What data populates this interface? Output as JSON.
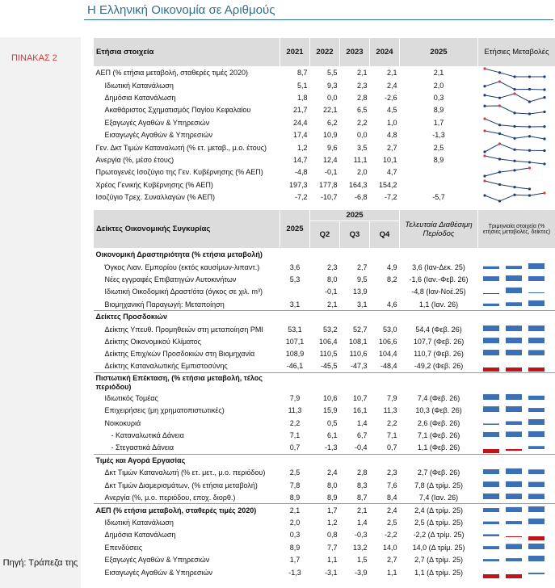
{
  "page_title": "Η Ελληνική Οικονομία σε Αριθμούς",
  "table_label": "ΠΙΝΑΚΑΣ 2",
  "source": "Πηγή: Τράπεζα της",
  "t1": {
    "header": {
      "label": "Ετήσια στοιχεία",
      "years": [
        "2021",
        "2022",
        "2023",
        "2024"
      ],
      "col2025": "2025",
      "spark": "Ετήσιες Μεταβολές"
    },
    "rows": [
      {
        "label": "ΑΕΠ (% ετήσια μεταβολή, σταθερές τιμές 2020)",
        "indent": 0,
        "v": [
          "8,7",
          "5,5",
          "2,1",
          "2,1"
        ],
        "y25": "2,1",
        "s": [
          8.7,
          5.5,
          2.1,
          2.1,
          2.1
        ]
      },
      {
        "label": "Ιδιωτική Κατανάλωση",
        "indent": 1,
        "v": [
          "5,1",
          "9,3",
          "2,3",
          "2,4"
        ],
        "y25": "2,0",
        "s": [
          5.1,
          9.3,
          2.3,
          2.4,
          2.0
        ]
      },
      {
        "label": "Δημόσια Κατανάλωση",
        "indent": 1,
        "v": [
          "1,8",
          "0,0",
          "2,8",
          "-2,6"
        ],
        "y25": "0,3",
        "s": [
          1.8,
          0.0,
          2.8,
          -2.6,
          0.3
        ]
      },
      {
        "label": "Ακαθάριστος Σχηματισμός Παγίου Κεφαλαίου",
        "indent": 1,
        "v": [
          "21,7",
          "22,1",
          "6,5",
          "4,5"
        ],
        "y25": "8,9",
        "s": [
          21.7,
          22.1,
          6.5,
          4.5,
          8.9
        ]
      },
      {
        "label": "Εξαγωγές Αγαθών & Υπηρεσιών",
        "indent": 1,
        "v": [
          "24,4",
          "6,2",
          "2,2",
          "1,0"
        ],
        "y25": "1,7",
        "s": [
          24.4,
          6.2,
          2.2,
          1.0,
          1.7
        ]
      },
      {
        "label": "Εισαγωγές Αγαθών & Υπηρεσιών",
        "indent": 1,
        "v": [
          "17,4",
          "10,9",
          "0,0",
          "4,8"
        ],
        "y25": "-1,3",
        "s": [
          17.4,
          10.9,
          0.0,
          4.8,
          -1.3
        ]
      },
      {
        "label": "Γεν. Δκτ Τιμών Καταναλωτή (% ετ. μεταβ., μ.ο. έτους)",
        "indent": 0,
        "v": [
          "1,2",
          "9,6",
          "3,5",
          "2,7"
        ],
        "y25": "2,5",
        "s": [
          1.2,
          9.6,
          3.5,
          2.7,
          2.5
        ]
      },
      {
        "label": "Ανεργία (%, μέσο έτους)",
        "indent": 0,
        "v": [
          "14,7",
          "12,4",
          "11,1",
          "10,1"
        ],
        "y25": "8,9",
        "s": [
          14.7,
          12.4,
          11.1,
          10.1,
          8.9
        ]
      },
      {
        "label": "Πρωτογενές Ισοζύγιο της Γεν. Κυβέρνησης (% ΑΕΠ)",
        "indent": 0,
        "v": [
          "-4,8",
          "-0,1",
          "2,0",
          "4,7"
        ],
        "y25": "",
        "s": [
          -4.8,
          -0.1,
          2.0,
          4.7
        ]
      },
      {
        "label": "Χρέος Γενικής Κυβέρνησης (% ΑΕΠ)",
        "indent": 0,
        "v": [
          "197,3",
          "177,8",
          "164,3",
          "154,2"
        ],
        "y25": "",
        "s": [
          197.3,
          177.8,
          164.3,
          154.2
        ]
      },
      {
        "label": "Ισοζύγιο Τρεχ. Συναλλαγών (% ΑΕΠ)",
        "indent": 0,
        "v": [
          "-7,2",
          "-10,7",
          "-6,8",
          "-7,2"
        ],
        "y25": "-5,7",
        "s": [
          -7.2,
          -10.7,
          -6.8,
          -7.2,
          -5.7
        ]
      }
    ]
  },
  "t2": {
    "header": {
      "label": "Δείκτες Οικονομικής Συγκυρίας",
      "year": "2025",
      "super": "2025",
      "q": [
        "Q2",
        "Q3",
        "Q4"
      ],
      "latest": "Τελευταία Διαθέσιμη Περίοδος",
      "bars": "Τριμηνιαία στοιχεία (% ετήσιες μεταβολές, δείκτες)"
    },
    "rows": [
      {
        "type": "sec",
        "label": "Οικονομική Δραστηριότητα (% ετήσια μεταβολή)"
      },
      {
        "label": "Όγκος Λιαν. Εμπορίου (εκτός καυσίμων-λιπαντ.)",
        "indent": 1,
        "y": "3,6",
        "q": [
          "2,3",
          "2,7",
          "4,9"
        ],
        "last": "3,6 (Ιαν-Δεκ. 25)",
        "b": [
          2.3,
          2.7,
          4.9
        ]
      },
      {
        "label": "Νέες εγγραφές Επιβατηγών Αυτοκινήτων",
        "indent": 1,
        "y": "5,3",
        "q": [
          "8,0",
          "9,5",
          "8,2"
        ],
        "last": "-1,6 (Ιαν.-Φεβ. 26)",
        "b": [
          8.0,
          9.5,
          8.2
        ]
      },
      {
        "label": "Ιδιωτική Οικοδομική Δραστ/ότα (όγκος σε χιλ. m³)",
        "indent": 1,
        "y": "",
        "q": [
          "-0,1",
          "13,9",
          ""
        ],
        "last": "-4,8 (Ιαν-Νοέ.25)",
        "b": [
          -0.1,
          13.9,
          0
        ]
      },
      {
        "label": "Βιομηχανική Παραγωγή: Μεταποίηση",
        "indent": 1,
        "y": "3,1",
        "q": [
          "2,1",
          "3,1",
          "4,6"
        ],
        "last": "1,1 (Ιαν. 26)",
        "b": [
          2.1,
          3.1,
          4.6
        ]
      },
      {
        "type": "sec",
        "label": "Δείκτες Προσδοκιών"
      },
      {
        "label": "Δείκτης Υπευθ. Προμηθειών στη μεταποίηση PMI",
        "indent": 1,
        "y": "53,1",
        "q": [
          "53,2",
          "52,7",
          "53,0"
        ],
        "last": "54,4 (Φεβ. 26)",
        "b": [
          53.2,
          52.7,
          53.0
        ]
      },
      {
        "label": "Δείκτης Οικονομικού Κλίματος",
        "indent": 1,
        "y": "107,1",
        "q": [
          "106,4",
          "108,1",
          "106,6"
        ],
        "last": "107,7 (Φεβ. 26)",
        "b": [
          106.4,
          108.1,
          106.6
        ]
      },
      {
        "label": "Δείκτης Επιχ/κών Προσδοκιών στη Βιομηχανία",
        "indent": 1,
        "y": "108,9",
        "q": [
          "110,5",
          "110,6",
          "104,4"
        ],
        "last": "110,7 (Φεβ. 26)",
        "b": [
          110.5,
          110.6,
          104.4
        ]
      },
      {
        "label": "Δείκτης Καταναλωτικής Εμπιστοσύνης",
        "indent": 1,
        "y": "-46,1",
        "q": [
          "-45,5",
          "-47,3",
          "-48,4"
        ],
        "last": "-49,2 (Φεβ. 26)",
        "b": [
          -45.5,
          -47.3,
          -48.4
        ]
      },
      {
        "type": "sec2",
        "label": "Πιστωτική Επέκταση, (% ετήσια μεταβολή, τέλος περιόδου)"
      },
      {
        "label": "Ιδιωτικός Τομέας",
        "indent": 1,
        "y": "7,9",
        "q": [
          "10,6",
          "10,7",
          "7,9"
        ],
        "last": "7,4 (Φεβ. 26)",
        "b": [
          10.6,
          10.7,
          7.9
        ]
      },
      {
        "label": "Επιχειρήσεις (μη χρηματοπιστωτικές)",
        "indent": 1,
        "y": "11,3",
        "q": [
          "15,9",
          "16,1",
          "11,3"
        ],
        "last": "10,3 (Φεβ. 26)",
        "b": [
          15.9,
          16.1,
          11.3
        ]
      },
      {
        "label": "Νοικοκυριά",
        "indent": 1,
        "y": "2,2",
        "q": [
          "0,5",
          "1,4",
          "2,2"
        ],
        "last": "2,6 (Φεβ. 26)",
        "b": [
          0.5,
          1.4,
          2.2
        ]
      },
      {
        "label": "- Καταναλωτικά Δάνεια",
        "indent": 2,
        "y": "7,1",
        "q": [
          "6,1",
          "6,7",
          "7,1"
        ],
        "last": "7,1 (Φεβ. 26)",
        "b": [
          6.1,
          6.7,
          7.1
        ]
      },
      {
        "label": "- Στεγαστικά Δάνεια",
        "indent": 2,
        "y": "0,7",
        "q": [
          "-1,3",
          "-0,4",
          "0,7"
        ],
        "last": "1,1 (Φεβ. 26)",
        "b": [
          -1.3,
          -0.4,
          0.7
        ]
      },
      {
        "type": "sec",
        "label": "Τιμές και Αγορά Εργασίας"
      },
      {
        "label": "Δκτ Τιμών Καταναλωτή (% ετ. μετ., μ.ο. περιόδου)",
        "indent": 1,
        "y": "2,5",
        "q": [
          "2,4",
          "2,8",
          "2,3"
        ],
        "last": "2,7 (Φεβ. 26)",
        "b": [
          2.4,
          2.8,
          2.3
        ]
      },
      {
        "label": "Δκτ Τιμών Διαμερισμάτων, (% ετήσια μεταβολή)",
        "indent": 1,
        "y": "7,8",
        "q": [
          "8,0",
          "8,3",
          "7,6"
        ],
        "last": "7,8 (Δ τρίμ. 25)",
        "b": [
          8.0,
          8.3,
          7.6
        ]
      },
      {
        "label": "Ανεργία (%, μ.ο. περιόδου, εποχ. διορθ.)",
        "indent": 1,
        "y": "8,9",
        "q": [
          "8,9",
          "8,7",
          "8,4"
        ],
        "last": "7,4 (Ιαν. 26)",
        "b": [
          8.9,
          8.7,
          8.4
        ]
      },
      {
        "type": "sec",
        "label": "ΑΕΠ (% ετήσια μεταβολή, σταθερές τιμές 2020)",
        "y": "2,1",
        "q": [
          "1,7",
          "2,1",
          "2,4"
        ],
        "last": "2,4 (Δ τρίμ. 25)",
        "b": [
          1.7,
          2.1,
          2.4
        ]
      },
      {
        "label": "Ιδιωτική Κατανάλωση",
        "indent": 1,
        "y": "2,0",
        "q": [
          "1,2",
          "1,4",
          "2,5"
        ],
        "last": "2,5 (Δ τρίμ. 25)",
        "b": [
          1.2,
          1.4,
          2.5
        ]
      },
      {
        "label": "Δημόσια Κατανάλωση",
        "indent": 1,
        "y": "0,3",
        "q": [
          "0,8",
          "-0,3",
          "-2,2"
        ],
        "last": "-2,2 (Δ τρίμ. 25)",
        "b": [
          0.8,
          -0.3,
          -2.2
        ]
      },
      {
        "label": "Επενδύσεις",
        "indent": 1,
        "y": "8,9",
        "q": [
          "7,7",
          "13,2",
          "14,0"
        ],
        "last": "14,0 (Δ τρίμ. 25)",
        "b": [
          7.7,
          13.2,
          14.0
        ]
      },
      {
        "label": "Εξαγωγές Αγαθών & Υπηρεσιών",
        "indent": 1,
        "y": "1,7",
        "q": [
          "1,1",
          "1,5",
          "2,7"
        ],
        "last": "2,7 (Δ τρίμ. 25)",
        "b": [
          1.1,
          1.5,
          2.7
        ]
      },
      {
        "label": "Εισαγωγές Αγαθών & Υπηρεσιών",
        "indent": 1,
        "y": "-1,3",
        "q": [
          "-3,1",
          "-3,9",
          "1,1"
        ],
        "last": "1,1 (Δ τρίμ. 25)",
        "b": [
          -3.1,
          -3.9,
          1.1
        ]
      }
    ]
  },
  "colors": {
    "spark_line": "#1f3b73",
    "spark_max": "#e0393b",
    "bar_pos": "#3b6fb6",
    "bar_neg": "#c0141a",
    "header_bg": "#dcdcdc",
    "title": "#2f6f8f"
  }
}
